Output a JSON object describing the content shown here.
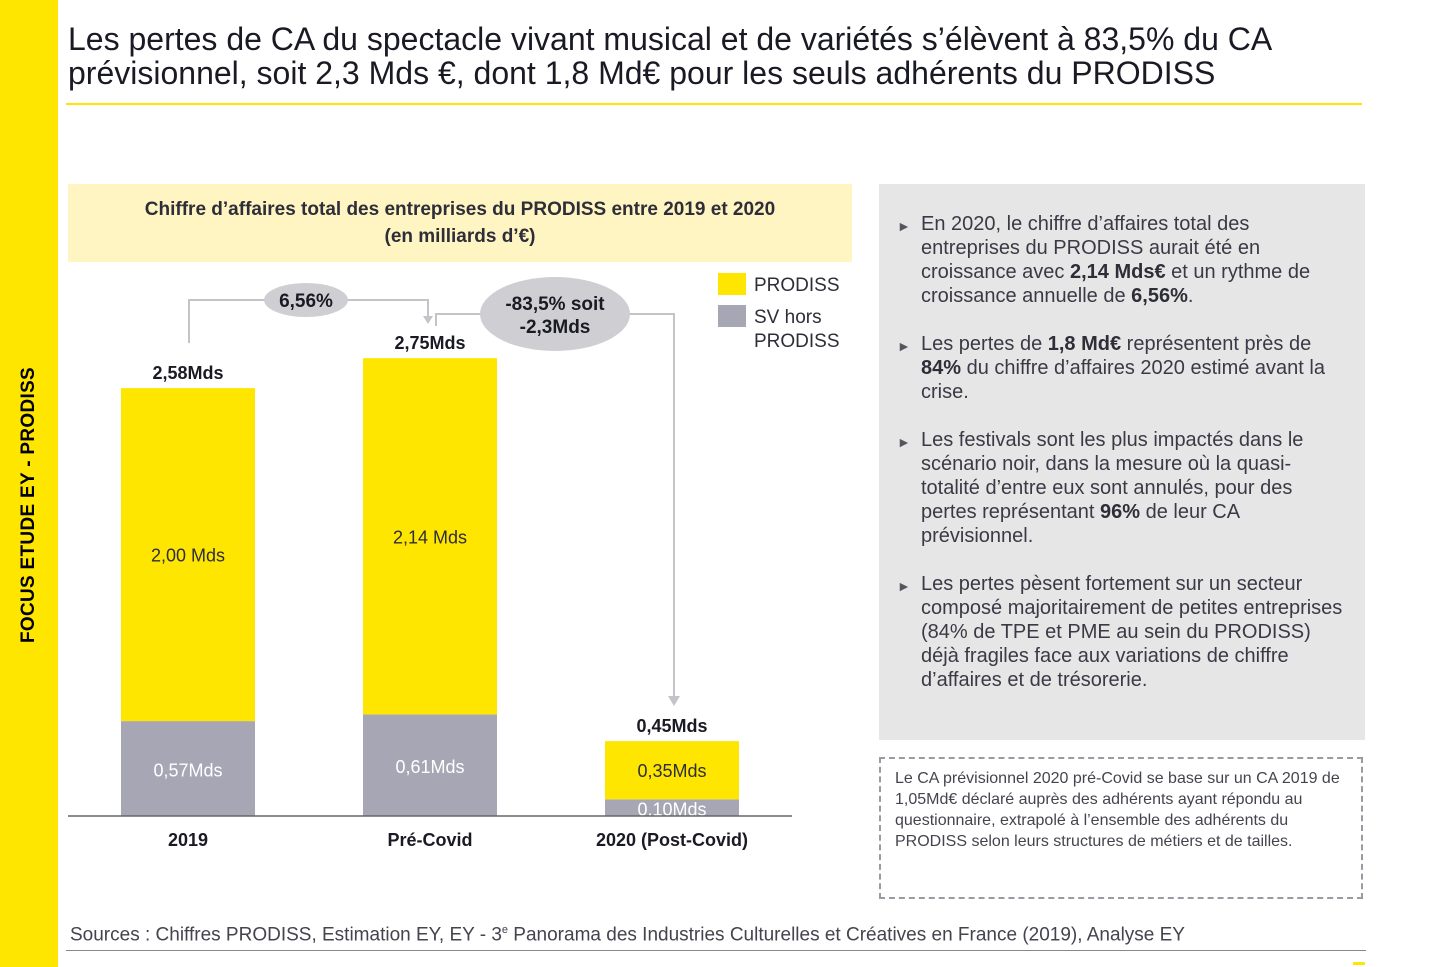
{
  "side_label": "FOCUS ETUDE EY - PRODISS",
  "title": "Les pertes de CA du spectacle vivant musical et de variétés s’élèvent à 83,5% du CA prévisionnel, soit 2,3 Mds €, dont 1,8 Md€ pour les seuls adhérents du PRODISS",
  "chart_header": {
    "line1": "Chiffre d’affaires total des entreprises du PRODISS entre 2019 et 2020",
    "line2": "(en milliards d’€)"
  },
  "chart_data": {
    "type": "bar",
    "stacked": true,
    "categories": [
      "2019",
      "Pré-Covid",
      "2020 (Post-Covid)"
    ],
    "series": [
      {
        "name": "SV hors PRODISS",
        "values": [
          0.57,
          0.61,
          0.1
        ],
        "labels": [
          "0,57Mds",
          "0,61Mds",
          "0,10Mds"
        ],
        "color": "#a7a6b5"
      },
      {
        "name": "PRODISS",
        "values": [
          2.0,
          2.14,
          0.35
        ],
        "labels": [
          "2,00 Mds",
          "2,14 Mds",
          "0,35Mds"
        ],
        "color": "#ffe600"
      }
    ],
    "totals": [
      2.58,
      2.75,
      0.45
    ],
    "total_labels": [
      "2,58Mds",
      "2,75Mds",
      "0,45Mds"
    ],
    "legend": {
      "placement": "top-right",
      "items": [
        {
          "lines": [
            "PRODISS"
          ],
          "color": "#ffe600"
        },
        {
          "lines": [
            "SV hors",
            "PRODISS"
          ],
          "color": "#a7a6b5"
        }
      ]
    },
    "annotations": [
      {
        "lines": [
          "6,56%"
        ],
        "from": 0,
        "to": 1
      },
      {
        "lines": [
          "-83,5% soit",
          "-2,3Mds"
        ],
        "from": 1,
        "to": 2
      }
    ],
    "colors": {
      "connector": "#c4c4c8",
      "annotation_bubble": "#cfcfd3",
      "axis": "#666666"
    }
  },
  "bullets": [
    [
      {
        "t": "En 2020, le chiffre d’affaires total des entreprises du PRODISS aurait été en croissance avec "
      },
      {
        "t": "2,14 Mds€",
        "b": true
      },
      {
        "t": " et un rythme de croissance annuelle de "
      },
      {
        "t": "6,56%",
        "b": true
      },
      {
        "t": "."
      }
    ],
    [
      {
        "t": "Les pertes de "
      },
      {
        "t": "1,8 Md€",
        "b": true
      },
      {
        "t": " représentent près de "
      },
      {
        "t": "84%",
        "b": true
      },
      {
        "t": " du chiffre d’affaires 2020 estimé avant la crise."
      }
    ],
    [
      {
        "t": "Les festivals sont les plus impactés dans le scénario noir, dans la mesure où la quasi-totalité d’entre eux sont annulés, pour des pertes représentant "
      },
      {
        "t": "96%",
        "b": true
      },
      {
        "t": " de leur CA prévisionnel."
      }
    ],
    [
      {
        "t": "Les pertes pèsent fortement sur un secteur composé majoritairement de petites entreprises (84% de TPE et PME au sein du PRODISS) déjà fragiles face aux variations de chiffre d’affaires et de trésorerie."
      }
    ]
  ],
  "bullet_marker": "►",
  "note": "Le CA prévisionnel 2020 pré-Covid se base sur un CA 2019 de 1,05Md€ déclaré auprès des adhérents ayant répondu au questionnaire, extrapolé à l’ensemble des adhérents du PRODISS selon leurs structures de métiers et de tailles.",
  "sources": {
    "before": "Sources : Chiffres PRODISS, Estimation EY, EY - 3",
    "sup": "e",
    "after": " Panorama des Industries Culturelles et Créatives en France (2019), Analyse EY"
  }
}
